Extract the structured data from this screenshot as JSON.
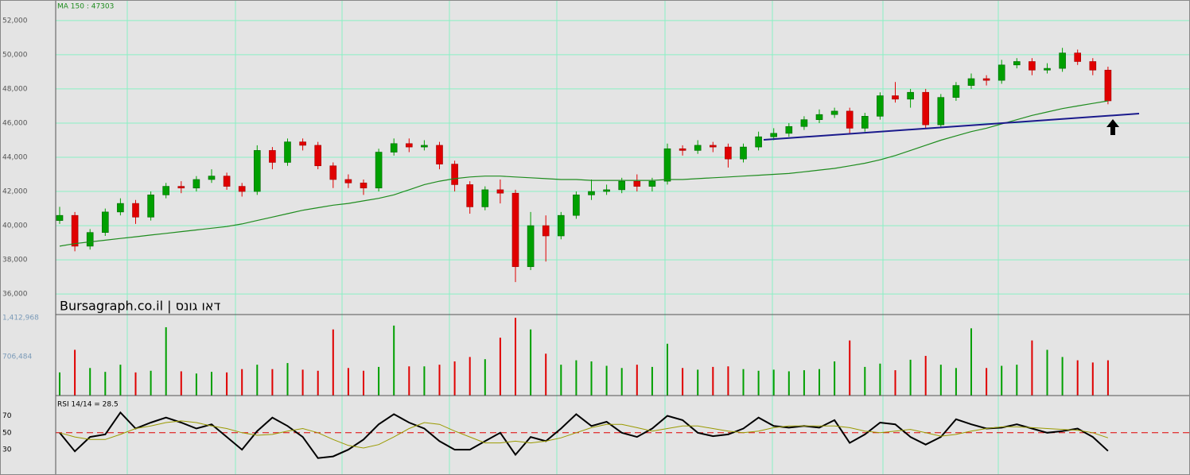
{
  "chart_data": [
    {
      "type": "candlestick",
      "title": "Bursagraph.co.il | דאו גונס",
      "up_color": "#00a000",
      "down_color": "#e00000",
      "grid": true,
      "ylim": [
        34800,
        53200
      ],
      "yticks": [
        {
          "value": 36000,
          "label": "36,000"
        },
        {
          "value": 38000,
          "label": "38,000"
        },
        {
          "value": 40000,
          "label": "40,000"
        },
        {
          "value": 42000,
          "label": "42,000"
        },
        {
          "value": 44000,
          "label": "44,000"
        },
        {
          "value": 46000,
          "label": "46,000"
        },
        {
          "value": 48000,
          "label": "48,000"
        },
        {
          "value": 50000,
          "label": "50,000"
        },
        {
          "value": 52000,
          "label": "52,000"
        }
      ],
      "open": [
        40300,
        40600,
        38800,
        39600,
        40800,
        41300,
        40500,
        41800,
        42300,
        42200,
        42700,
        42900,
        42300,
        42000,
        44400,
        43700,
        44900,
        44700,
        43500,
        42700,
        42500,
        42200,
        44300,
        44800,
        44600,
        44700,
        43600,
        42400,
        41100,
        42100,
        41900,
        37600,
        40000,
        39400,
        40600,
        41800,
        42000,
        42100,
        42600,
        42300,
        42600,
        44500,
        44400,
        44700,
        44600,
        43900,
        44600,
        45200,
        45400,
        45800,
        46200,
        46500,
        46700,
        45700,
        46400,
        47600,
        47400,
        47800,
        45900,
        47500,
        48200,
        48600,
        48500,
        49400,
        49600,
        49100,
        49200,
        50100,
        49600,
        49100
      ],
      "high": [
        41100,
        40800,
        39800,
        41000,
        41600,
        41500,
        42000,
        42500,
        42600,
        42900,
        43300,
        43100,
        42500,
        44700,
        44600,
        45100,
        45100,
        44900,
        43700,
        43000,
        42700,
        44500,
        45100,
        45100,
        45000,
        44900,
        43800,
        42600,
        42300,
        42700,
        42100,
        40800,
        40600,
        40800,
        42000,
        42700,
        42400,
        42800,
        43000,
        42800,
        44800,
        44700,
        45000,
        44900,
        44800,
        44800,
        45500,
        45700,
        46000,
        46400,
        46800,
        46900,
        46900,
        46600,
        47800,
        48400,
        48000,
        48000,
        47700,
        48400,
        48900,
        48800,
        49700,
        49800,
        49800,
        49500,
        50400,
        50300,
        49800,
        49300
      ],
      "low": [
        40100,
        38500,
        38600,
        39400,
        40600,
        40100,
        40300,
        41600,
        41900,
        42000,
        42500,
        42100,
        41700,
        41800,
        43300,
        43500,
        44400,
        43300,
        42200,
        42200,
        41800,
        42000,
        44100,
        44300,
        44400,
        43300,
        42000,
        40700,
        40900,
        41300,
        36700,
        37400,
        37900,
        39200,
        40400,
        41500,
        41800,
        41900,
        42000,
        42000,
        42400,
        44100,
        44200,
        44300,
        43400,
        43700,
        44400,
        45000,
        45200,
        45600,
        46000,
        46300,
        45400,
        45500,
        46200,
        47200,
        46900,
        45700,
        45700,
        47300,
        48000,
        48200,
        48300,
        49200,
        48800,
        48900,
        49000,
        49400,
        48800,
        47100
      ],
      "close": [
        40600,
        38800,
        39600,
        40800,
        41300,
        40500,
        41800,
        42300,
        42200,
        42700,
        42900,
        42300,
        42000,
        44400,
        43700,
        44900,
        44700,
        43500,
        42700,
        42500,
        42200,
        44300,
        44800,
        44600,
        44700,
        43600,
        42400,
        41100,
        42100,
        41900,
        37600,
        40000,
        39400,
        40600,
        41800,
        42000,
        42100,
        42600,
        42300,
        42600,
        44500,
        44400,
        44700,
        44600,
        43900,
        44600,
        45200,
        45400,
        45800,
        46200,
        46500,
        46700,
        45700,
        46400,
        47600,
        47400,
        47800,
        45900,
        47500,
        48200,
        48600,
        48500,
        49400,
        49600,
        49100,
        49200,
        50100,
        49600,
        49100,
        47300
      ],
      "series": [
        {
          "name": "MA 150 : 47303",
          "color": "#1e8c1e",
          "values": [
            38800,
            38950,
            39050,
            39150,
            39250,
            39350,
            39450,
            39550,
            39650,
            39750,
            39850,
            39950,
            40100,
            40300,
            40500,
            40700,
            40900,
            41050,
            41200,
            41300,
            41450,
            41600,
            41800,
            42100,
            42400,
            42600,
            42750,
            42850,
            42900,
            42900,
            42850,
            42800,
            42750,
            42700,
            42700,
            42650,
            42650,
            42650,
            42650,
            42650,
            42700,
            42700,
            42750,
            42800,
            42850,
            42900,
            42950,
            43000,
            43050,
            43150,
            43250,
            43350,
            43500,
            43650,
            43850,
            44100,
            44400,
            44700,
            45000,
            45250,
            45500,
            45700,
            45950,
            46200,
            46450,
            46650,
            46850,
            47000,
            47150,
            47300
          ]
        }
      ]
    },
    {
      "type": "bar",
      "ylim": [
        0,
        1470000
      ],
      "yticks": [
        {
          "value": 706484,
          "label": "706,484"
        },
        {
          "value": 1412968,
          "label": "1,412,968"
        }
      ],
      "values": [
        420000,
        830000,
        500000,
        430000,
        560000,
        420000,
        450000,
        1240000,
        440000,
        400000,
        430000,
        420000,
        480000,
        560000,
        480000,
        590000,
        470000,
        450000,
        1200000,
        500000,
        450000,
        520000,
        1270000,
        530000,
        530000,
        560000,
        620000,
        700000,
        660000,
        1050000,
        1410000,
        1200000,
        760000,
        560000,
        640000,
        620000,
        540000,
        500000,
        560000,
        520000,
        940000,
        500000,
        470000,
        520000,
        530000,
        480000,
        450000,
        470000,
        440000,
        460000,
        480000,
        620000,
        1000000,
        520000,
        580000,
        460000,
        650000,
        720000,
        560000,
        500000,
        1220000,
        500000,
        540000,
        560000,
        1000000,
        830000,
        700000,
        640000,
        600000,
        640000
      ]
    },
    {
      "type": "line",
      "ylim": [
        0,
        94
      ],
      "yticks": [
        30,
        50,
        70
      ],
      "hline": {
        "value": 50,
        "color": "#e00000",
        "style": "dashed"
      },
      "series": [
        {
          "name": "RSI 14/14 = 28.5",
          "color": "#000000",
          "values": [
            50,
            28,
            45,
            48,
            74,
            55,
            62,
            68,
            62,
            55,
            60,
            45,
            30,
            52,
            68,
            58,
            45,
            20,
            22,
            30,
            42,
            60,
            72,
            62,
            55,
            40,
            30,
            30,
            40,
            50,
            24,
            45,
            40,
            55,
            72,
            58,
            63,
            50,
            45,
            55,
            70,
            65,
            50,
            46,
            48,
            55,
            68,
            58,
            56,
            58,
            56,
            65,
            38,
            48,
            62,
            60,
            45,
            36,
            45,
            66,
            60,
            55,
            56,
            60,
            55,
            50,
            52,
            55,
            45,
            28.5
          ]
        },
        {
          "color": "#9a9a00",
          "values": [
            50,
            45,
            42,
            42,
            48,
            55,
            58,
            62,
            64,
            62,
            58,
            55,
            50,
            47,
            48,
            52,
            55,
            50,
            42,
            35,
            32,
            36,
            45,
            55,
            62,
            60,
            52,
            45,
            38,
            38,
            40,
            38,
            40,
            44,
            50,
            56,
            60,
            60,
            56,
            52,
            55,
            58,
            58,
            55,
            52,
            50,
            52,
            56,
            58,
            58,
            58,
            58,
            56,
            52,
            50,
            52,
            54,
            50,
            46,
            48,
            52,
            55,
            57,
            57,
            56,
            55,
            54,
            53,
            50,
            44
          ]
        }
      ]
    }
  ]
}
